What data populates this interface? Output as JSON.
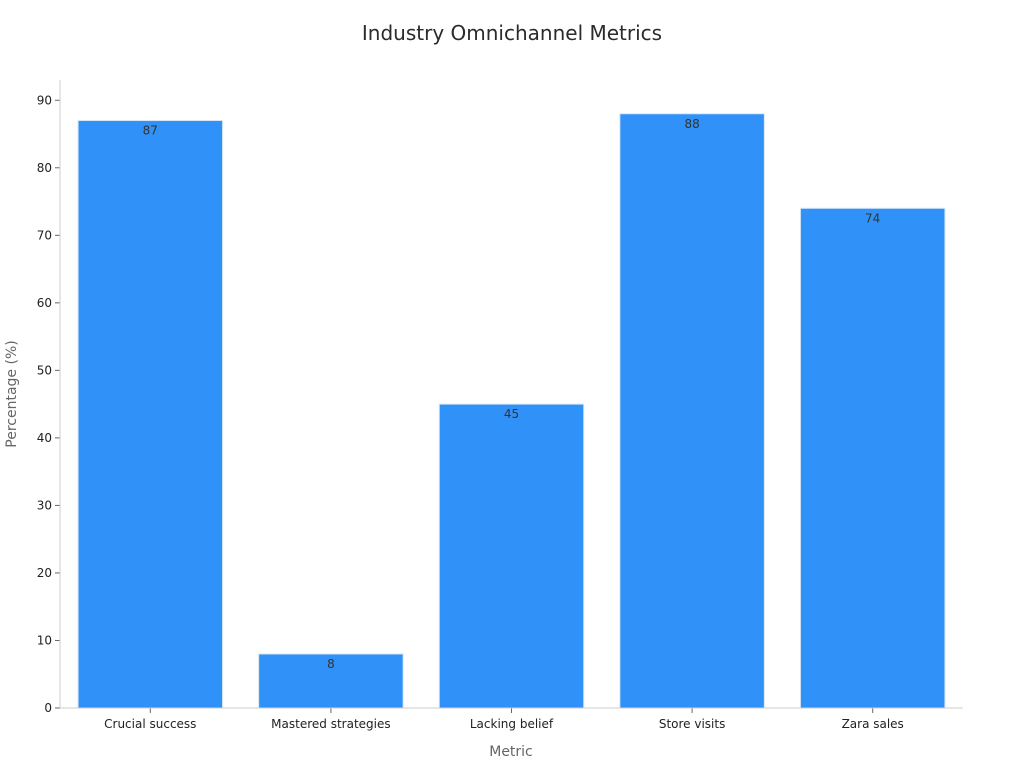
{
  "chart_data": {
    "type": "bar",
    "title": "Industry Omnichannel Metrics",
    "xlabel": "Metric",
    "ylabel": "Percentage (%)",
    "categories": [
      "Crucial success",
      "Mastered strategies",
      "Lacking belief",
      "Store visits",
      "Zara sales"
    ],
    "values": [
      87,
      8,
      45,
      88,
      74
    ],
    "data_labels": [
      "87",
      "8",
      "45",
      "88",
      "74"
    ],
    "ylim": [
      0,
      93
    ],
    "yticks": [
      0,
      10,
      20,
      30,
      40,
      50,
      60,
      70,
      80,
      90
    ],
    "grid": false,
    "legend": "none",
    "colors": {
      "bar": "#3092f8",
      "bar_edge": "#d6e6f5"
    }
  }
}
